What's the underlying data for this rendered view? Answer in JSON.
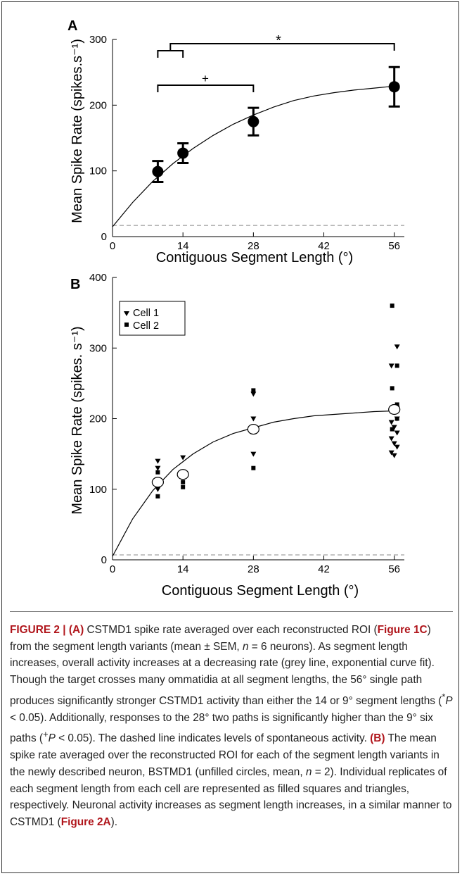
{
  "chart_data": [
    {
      "panel": "A",
      "type": "scatter",
      "xlabel": "Contiguous Segment Length (°)",
      "ylabel": "Mean Spike Rate (spikes.s⁻¹)",
      "xlim": [
        0,
        58
      ],
      "ylim": [
        0,
        300
      ],
      "xticks": [
        0,
        14,
        28,
        42,
        56
      ],
      "yticks": [
        0,
        100,
        200,
        300
      ],
      "series": [
        {
          "x": [
            9,
            14,
            28,
            56
          ],
          "y": [
            99,
            127,
            175,
            228
          ],
          "err": [
            16,
            15,
            21,
            30
          ]
        }
      ],
      "fit_curve": {
        "x": [
          0,
          4,
          8,
          12,
          16,
          20,
          24,
          28,
          32,
          36,
          40,
          44,
          48,
          52,
          56
        ],
        "y": [
          15,
          52,
          84,
          111,
          134,
          154,
          171,
          185,
          197,
          207,
          214,
          219,
          223,
          226,
          229
        ]
      },
      "baseline": 17,
      "significance": [
        {
          "label": "*",
          "from": [
            9,
            14
          ],
          "to": 56
        },
        {
          "label": "+",
          "from": [
            9
          ],
          "to": 28
        }
      ]
    },
    {
      "panel": "B",
      "type": "scatter",
      "xlabel": "Contiguous Segment Length (°)",
      "ylabel": "Mean Spike Rate (spikes. s⁻¹)",
      "xlim": [
        0,
        58
      ],
      "ylim": [
        0,
        400
      ],
      "xticks": [
        0,
        14,
        28,
        42,
        56
      ],
      "yticks": [
        0,
        100,
        200,
        300,
        400
      ],
      "legend": [
        "Cell 1",
        "Cell 2"
      ],
      "legend_position": "top-left",
      "means": {
        "x": [
          9,
          14,
          28,
          56
        ],
        "y": [
          110,
          121,
          185,
          213
        ]
      },
      "series": [
        {
          "name": "Cell 1",
          "marker": "triangle",
          "x": [
            9,
            9,
            9,
            14,
            14,
            28,
            28,
            28,
            56,
            56,
            56,
            56,
            56,
            56,
            56,
            56,
            56,
            56,
            56,
            56,
            56
          ],
          "y": [
            140,
            130,
            100,
            145,
            125,
            235,
            200,
            150,
            302,
            275,
            210,
            200,
            195,
            188,
            180,
            172,
            165,
            160,
            152,
            148,
            215
          ]
        },
        {
          "name": "Cell 2",
          "marker": "square",
          "x": [
            9,
            9,
            14,
            14,
            28,
            28,
            56,
            56,
            56,
            56,
            56,
            56,
            56
          ],
          "y": [
            124,
            90,
            103,
            110,
            240,
            130,
            360,
            275,
            243,
            220,
            210,
            200,
            185
          ]
        }
      ],
      "fit_curve": {
        "x": [
          0,
          4,
          8,
          12,
          16,
          20,
          24,
          28,
          32,
          36,
          40,
          44,
          48,
          52,
          56
        ],
        "y": [
          5,
          58,
          98,
          128,
          150,
          167,
          179,
          187,
          195,
          200,
          204,
          206,
          208,
          210,
          211
        ]
      },
      "baseline": 7
    }
  ],
  "panel_a": {
    "label": "A",
    "x_title": "Contiguous Segment Length (°)",
    "star": "*",
    "plus": "+"
  },
  "panel_b": {
    "label": "B",
    "x_title": "Contiguous Segment Length (°)",
    "legend": [
      "Cell 1",
      "Cell 2"
    ]
  },
  "caption": {
    "fig_label": "FIGURE 2 | (A)",
    "t1": " CSTMD1 spike rate averaged over each reconstructed ROI (",
    "r1": "Figure 1C",
    "t2": ") from the segment length variants (mean ± SEM, ",
    "n1": "n",
    "t3": " = 6 neurons). As segment length increases, overall activity increases at a decreasing rate (grey line, exponential curve fit). Though the target crosses many ommatidia at all segment lengths, the 56° single path produces significantly stronger CSTMD1 activity than either the 14 or 9° segment lengths (",
    "p1a": "*",
    "p1b": "P",
    "t4": " < 0.05). Additionally, responses to the 28° two paths is significantly higher than the 9° six paths (",
    "p2a": "+",
    "p2b": "P",
    "t5": " < 0.05). The dashed line indicates levels of spontaneous activity. ",
    "b_label": "(B)",
    "t6": " The mean spike rate averaged over the reconstructed ROI for each of the segment length variants in the newly described neuron, BSTMD1 (unfilled circles, mean, ",
    "n2": "n",
    "t7": " = 2). Individual replicates of each segment length from each cell are represented as filled squares and triangles, respectively. Neuronal activity increases as segment length increases, in a similar manner to CSTMD1 (",
    "r2": "Figure 2A",
    "t8": ")."
  }
}
